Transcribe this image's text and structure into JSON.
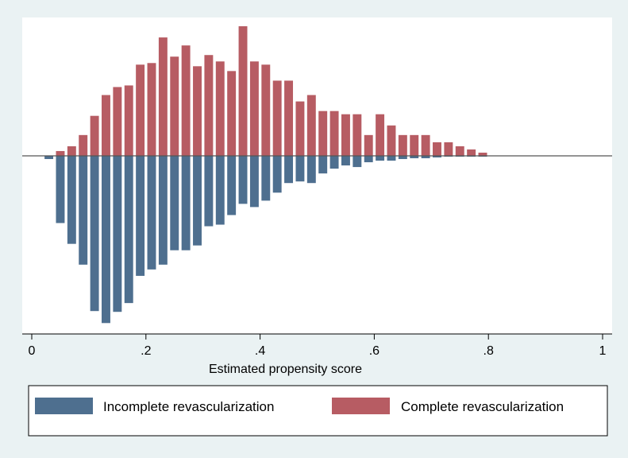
{
  "chart_data": {
    "type": "bar",
    "xlabel": "Estimated propensity score",
    "xlim": [
      0,
      1
    ],
    "xticks": [
      {
        "value": 0,
        "label": "0"
      },
      {
        "value": 0.2,
        "label": ".2"
      },
      {
        "value": 0.4,
        "label": ".4"
      },
      {
        "value": 0.6,
        "label": ".6"
      },
      {
        "value": 0.8,
        "label": ".8"
      },
      {
        "value": 1,
        "label": "1"
      }
    ],
    "ylim": [
      -210,
      162
    ],
    "bin_width": 0.02,
    "grid": false,
    "legend_position": "bottom",
    "series": [
      {
        "name": "Incomplete revascularization",
        "color": "#4e6f8f",
        "x": [
          0.03,
          0.05,
          0.07,
          0.09,
          0.11,
          0.13,
          0.15,
          0.17,
          0.19,
          0.21,
          0.23,
          0.25,
          0.27,
          0.29,
          0.31,
          0.33,
          0.35,
          0.37,
          0.39,
          0.41,
          0.43,
          0.45,
          0.47,
          0.49,
          0.51,
          0.53,
          0.55,
          0.57,
          0.59,
          0.61,
          0.63,
          0.65,
          0.67,
          0.69,
          0.71,
          0.73,
          0.75,
          0.77,
          0.79,
          0.81,
          0.83
        ],
        "values": [
          -4,
          -84,
          -110,
          -136,
          -194,
          -209,
          -195,
          -184,
          -150,
          -142,
          -136,
          -118,
          -118,
          -112,
          -88,
          -86,
          -74,
          -60,
          -64,
          -56,
          -46,
          -34,
          -32,
          -34,
          -22,
          -16,
          -12,
          -14,
          -8,
          -6,
          -6,
          -4,
          -3,
          -3,
          -2,
          -1,
          -1,
          -1,
          -1,
          0,
          0
        ],
        "_note": null
      },
      {
        "name": "Complete revascularization",
        "color": "#b75c63",
        "x": [
          0.03,
          0.05,
          0.07,
          0.09,
          0.11,
          0.13,
          0.15,
          0.17,
          0.19,
          0.21,
          0.23,
          0.25,
          0.27,
          0.29,
          0.31,
          0.33,
          0.35,
          0.37,
          0.39,
          0.41,
          0.43,
          0.45,
          0.47,
          0.49,
          0.51,
          0.53,
          0.55,
          0.57,
          0.59,
          0.61,
          0.63,
          0.65,
          0.67,
          0.69,
          0.71,
          0.73,
          0.75,
          0.77,
          0.79,
          0.81,
          0.83,
          0.85
        ],
        "values": [
          0,
          6,
          12,
          26,
          50,
          76,
          86,
          88,
          114,
          116,
          148,
          124,
          138,
          112,
          126,
          118,
          106,
          162,
          118,
          114,
          94,
          94,
          68,
          76,
          56,
          56,
          52,
          52,
          26,
          52,
          38,
          26,
          26,
          26,
          17,
          17,
          12,
          8,
          4,
          0,
          0,
          0
        ]
      }
    ]
  }
}
